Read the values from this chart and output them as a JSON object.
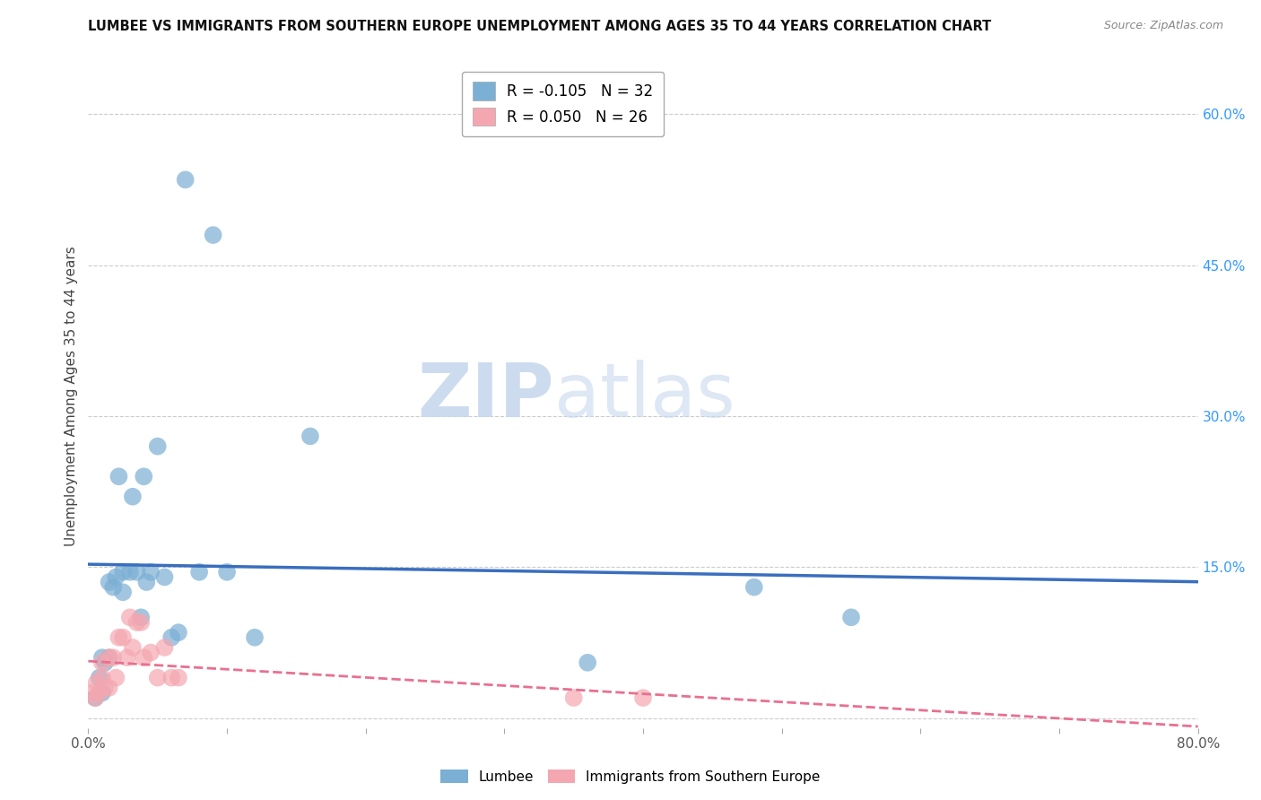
{
  "title": "LUMBEE VS IMMIGRANTS FROM SOUTHERN EUROPE UNEMPLOYMENT AMONG AGES 35 TO 44 YEARS CORRELATION CHART",
  "source": "Source: ZipAtlas.com",
  "ylabel": "Unemployment Among Ages 35 to 44 years",
  "xlim": [
    0.0,
    0.8
  ],
  "ylim": [
    -0.01,
    0.65
  ],
  "y_ticks_right": [
    0.0,
    0.15,
    0.3,
    0.45,
    0.6
  ],
  "y_tick_labels_right": [
    "",
    "15.0%",
    "30.0%",
    "45.0%",
    "60.0%"
  ],
  "lumbee_color": "#7BAFD4",
  "immigrant_color": "#F4A7B0",
  "lumbee_line_color": "#3A6EBF",
  "immigrant_line_color": "#E87090",
  "grid_color": "#CCCCCC",
  "background_color": "#FFFFFF",
  "watermark_left": "ZIP",
  "watermark_right": "atlas",
  "legend_r_lumbee": "-0.105",
  "legend_n_lumbee": "32",
  "legend_r_immigrant": "0.050",
  "legend_n_immigrant": "26",
  "lumbee_x": [
    0.005,
    0.008,
    0.01,
    0.01,
    0.012,
    0.015,
    0.015,
    0.018,
    0.02,
    0.022,
    0.025,
    0.025,
    0.03,
    0.032,
    0.035,
    0.038,
    0.04,
    0.042,
    0.045,
    0.05,
    0.055,
    0.06,
    0.065,
    0.07,
    0.08,
    0.09,
    0.1,
    0.12,
    0.16,
    0.36,
    0.48,
    0.55
  ],
  "lumbee_y": [
    0.02,
    0.04,
    0.025,
    0.06,
    0.055,
    0.06,
    0.135,
    0.13,
    0.14,
    0.24,
    0.125,
    0.145,
    0.145,
    0.22,
    0.145,
    0.1,
    0.24,
    0.135,
    0.145,
    0.27,
    0.14,
    0.08,
    0.085,
    0.535,
    0.145,
    0.48,
    0.145,
    0.08,
    0.28,
    0.055,
    0.13,
    0.1
  ],
  "immigrant_x": [
    0.003,
    0.005,
    0.006,
    0.008,
    0.01,
    0.01,
    0.012,
    0.015,
    0.015,
    0.018,
    0.02,
    0.022,
    0.025,
    0.028,
    0.03,
    0.032,
    0.035,
    0.038,
    0.04,
    0.045,
    0.05,
    0.055,
    0.06,
    0.065,
    0.35,
    0.4
  ],
  "immigrant_y": [
    0.025,
    0.02,
    0.035,
    0.025,
    0.04,
    0.055,
    0.03,
    0.03,
    0.06,
    0.06,
    0.04,
    0.08,
    0.08,
    0.06,
    0.1,
    0.07,
    0.095,
    0.095,
    0.06,
    0.065,
    0.04,
    0.07,
    0.04,
    0.04,
    0.02,
    0.02
  ]
}
